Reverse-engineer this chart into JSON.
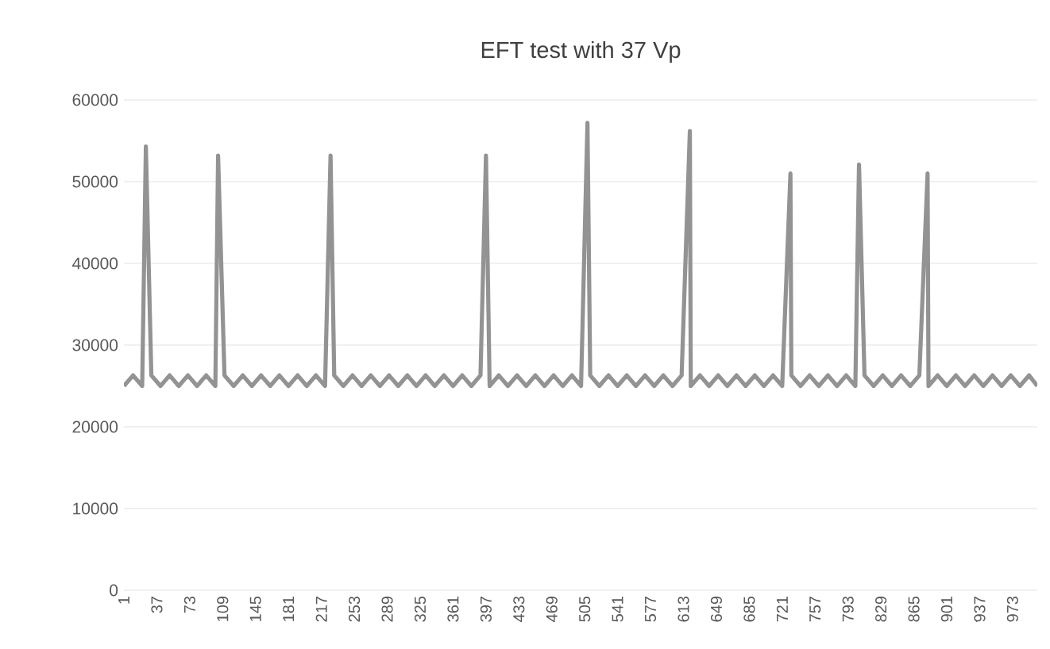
{
  "chart_data": {
    "type": "line",
    "title": "EFT test with 37 Vp",
    "x": [
      1,
      11,
      21,
      25,
      31,
      41,
      51,
      61,
      71,
      81,
      91,
      101,
      104,
      111,
      121,
      131,
      141,
      151,
      161,
      171,
      181,
      191,
      201,
      211,
      221,
      227,
      231,
      241,
      251,
      261,
      271,
      281,
      291,
      301,
      311,
      321,
      331,
      341,
      351,
      361,
      371,
      381,
      391,
      397,
      401,
      411,
      421,
      431,
      441,
      451,
      461,
      471,
      481,
      491,
      501,
      508,
      511,
      521,
      531,
      541,
      551,
      561,
      571,
      581,
      591,
      601,
      611,
      620,
      621,
      631,
      641,
      651,
      661,
      671,
      681,
      691,
      701,
      711,
      721,
      730,
      731,
      741,
      751,
      761,
      771,
      781,
      791,
      801,
      805,
      811,
      821,
      831,
      841,
      851,
      861,
      871,
      880,
      881,
      891,
      901,
      911,
      921,
      931,
      941,
      951,
      961,
      971,
      981,
      991,
      1000
    ],
    "values": [
      25000,
      26300,
      25000,
      54300,
      26300,
      25000,
      26300,
      25000,
      26300,
      25000,
      26300,
      25000,
      53200,
      26300,
      25000,
      26300,
      25000,
      26300,
      25000,
      26300,
      25000,
      26300,
      25000,
      26300,
      25000,
      53200,
      26300,
      25000,
      26300,
      25000,
      26300,
      25000,
      26300,
      25000,
      26300,
      25000,
      26300,
      25000,
      26300,
      25000,
      26300,
      25000,
      26300,
      53200,
      25000,
      26300,
      25000,
      26300,
      25000,
      26300,
      25000,
      26300,
      25000,
      26300,
      25000,
      57200,
      26300,
      25000,
      26300,
      25000,
      26300,
      25000,
      26300,
      25000,
      26300,
      25000,
      26300,
      56200,
      25000,
      26300,
      25000,
      26300,
      25000,
      26300,
      25000,
      26300,
      25000,
      26300,
      25000,
      51000,
      26300,
      25000,
      26300,
      25000,
      26300,
      25000,
      26300,
      25000,
      52100,
      26300,
      25000,
      26300,
      25000,
      26300,
      25000,
      26300,
      51000,
      25000,
      26300,
      25000,
      26300,
      25000,
      26300,
      25000,
      26300,
      25000,
      26300,
      25000,
      26300,
      25000
    ],
    "color": "#939393",
    "xlim": [
      1,
      1000
    ],
    "xticks": [
      1,
      37,
      73,
      109,
      145,
      181,
      217,
      253,
      289,
      325,
      361,
      397,
      433,
      469,
      505,
      541,
      577,
      613,
      649,
      685,
      721,
      757,
      793,
      829,
      865,
      901,
      937,
      973
    ],
    "ylim": [
      0,
      60000
    ],
    "yticks": [
      0,
      10000,
      20000,
      30000,
      40000,
      50000,
      60000
    ],
    "grid": "y",
    "marker": "none",
    "line_style": "solid"
  }
}
